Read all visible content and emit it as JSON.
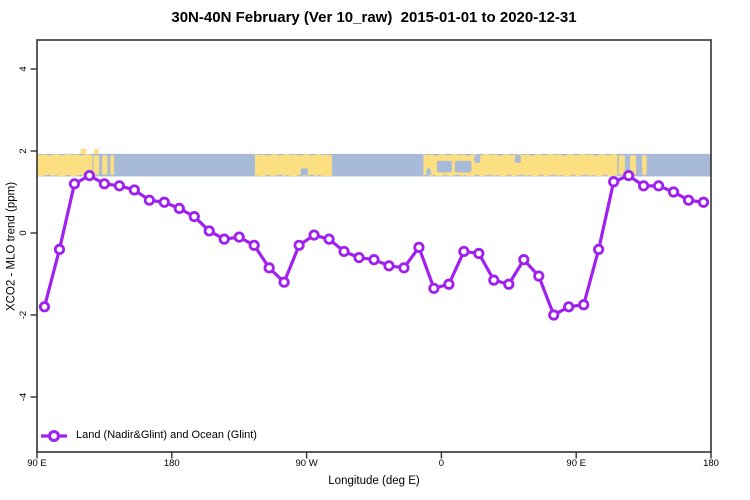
{
  "title": "30N-40N February (Ver 10_raw)  2015-01-01 to 2020-12-31",
  "legend": {
    "label": "Land (Nadir&Glint) and Ocean (Glint)",
    "marker": "open-circle-on-line"
  },
  "colors": {
    "line": "#A020F0",
    "marker_fill": "#ffffff",
    "ocean_band": "#a7bad8",
    "land_band": "#fcdf81",
    "axis": "#333333",
    "text": "#000000"
  },
  "chart_data": {
    "type": "line",
    "title": "30N-40N February (Ver 10_raw)  2015-01-01 to 2020-12-31",
    "xlabel": "Longitude (deg E)",
    "ylabel": "XCO2 - MLO trend (ppm)",
    "xlim": [
      90,
      540
    ],
    "ylim": [
      -5,
      5
    ],
    "grid": false,
    "legend_position": "bottom-left-inside",
    "x_axis_note": "longitude axis spans 450 deg wrapping: 90E -> 180 -> 90W -> 0 -> 90E -> 180",
    "x_ticks": [
      {
        "pos": 90,
        "label": "90 E"
      },
      {
        "pos": 180,
        "label": "180"
      },
      {
        "pos": 270,
        "label": "90 W"
      },
      {
        "pos": 360,
        "label": "0"
      },
      {
        "pos": 450,
        "label": "90 E"
      },
      {
        "pos": 540,
        "label": "180"
      }
    ],
    "y_ticks": [
      {
        "value": -4,
        "label": "-4"
      },
      {
        "value": -2,
        "label": "-2"
      },
      {
        "value": 0,
        "label": "0"
      },
      {
        "value": 2,
        "label": "2"
      },
      {
        "value": 4,
        "label": "4"
      }
    ],
    "series": [
      {
        "name": "Land (Nadir&Glint) and Ocean (Glint)",
        "marker": "open-circle",
        "x": [
          95,
          105,
          115,
          125,
          135,
          145,
          155,
          165,
          175,
          185,
          195,
          205,
          215,
          225,
          235,
          245,
          255,
          265,
          275,
          285,
          295,
          305,
          315,
          325,
          335,
          345,
          355,
          365,
          375,
          385,
          395,
          405,
          415,
          425,
          435,
          445,
          455,
          465,
          475,
          485,
          495,
          505,
          515,
          525,
          535
        ],
        "values": [
          -1.8,
          -0.4,
          1.2,
          1.4,
          1.2,
          1.15,
          1.05,
          0.8,
          0.75,
          0.6,
          0.4,
          0.05,
          -0.15,
          -0.1,
          -0.3,
          -0.85,
          -1.2,
          -0.3,
          -0.05,
          -0.15,
          -0.45,
          -0.6,
          -0.65,
          -0.8,
          -0.85,
          -0.35,
          -1.35,
          -1.25,
          -0.45,
          -0.5,
          -1.15,
          -1.25,
          -0.65,
          -1.05,
          -2.0,
          -1.8,
          -1.75,
          -0.4,
          1.25,
          1.4,
          1.15,
          1.15,
          1.0,
          0.8,
          0.75
        ]
      }
    ],
    "map_band": {
      "description": "30N-40N world-map strip drawn across the plot",
      "value_top": 1.93,
      "value_bottom": 1.38,
      "land_segments": [
        {
          "from": 90,
          "to": 127
        },
        {
          "from": 127.7,
          "to": 131.5
        },
        {
          "from": 133.5,
          "to": 137
        },
        {
          "from": 139,
          "to": 141.5
        },
        {
          "from": 235.5,
          "to": 287
        },
        {
          "from": 348,
          "to": 477.5
        },
        {
          "from": 478.5,
          "to": 482.5
        },
        {
          "from": 486,
          "to": 490
        },
        {
          "from": 494,
          "to": 497
        }
      ],
      "sea_patches": [
        {
          "from": 266,
          "to": 271,
          "pos": "bot"
        },
        {
          "from": 350,
          "to": 353,
          "pos": "bot"
        },
        {
          "from": 357,
          "to": 367,
          "pos": "mid"
        },
        {
          "from": 369,
          "to": 380,
          "pos": "mid"
        },
        {
          "from": 382,
          "to": 386,
          "pos": "top"
        },
        {
          "from": 409,
          "to": 413,
          "pos": "top"
        }
      ],
      "islands_above": [
        {
          "from": 119,
          "to": 123
        },
        {
          "from": 128,
          "to": 131
        }
      ]
    }
  }
}
